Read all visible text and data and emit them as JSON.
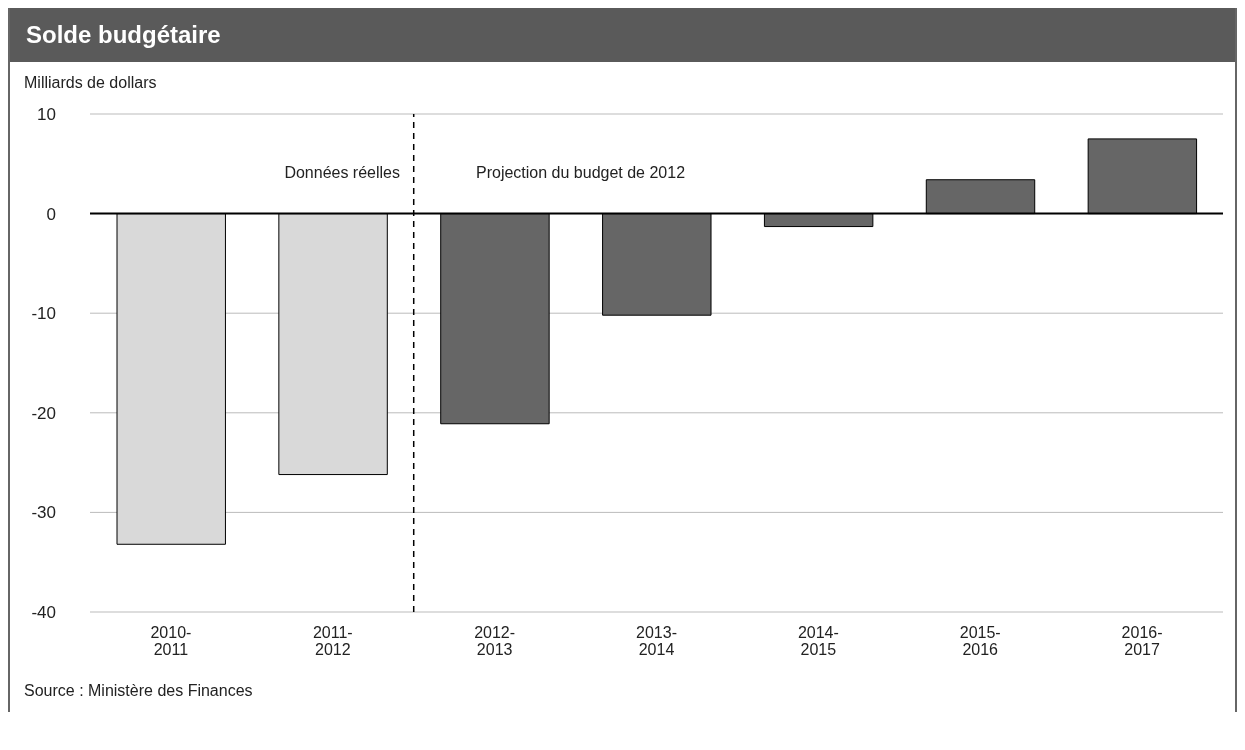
{
  "chart_data": {
    "type": "bar",
    "title": "Solde budgétaire",
    "ylabel": "Milliards de dollars",
    "categories": [
      "2010-\n2011",
      "2011-\n2012",
      "2012-\n2013",
      "2013-\n2014",
      "2014-\n2015",
      "2015-\n2016",
      "2016-\n2017"
    ],
    "values": [
      -33.2,
      -26.2,
      -21.1,
      -10.2,
      -1.3,
      3.4,
      7.5
    ],
    "colors": [
      "#d9d9d9",
      "#d9d9d9",
      "#666666",
      "#666666",
      "#666666",
      "#666666",
      "#666666"
    ],
    "ylim": [
      -40,
      10
    ],
    "yticks": [
      -40,
      -30,
      -20,
      -10,
      0,
      10
    ],
    "grid": "y",
    "ref_lines": [
      {
        "axis": "x",
        "value": "2012-\n2013",
        "color": "#000000",
        "line_style": "dashed"
      },
      {
        "axis": "y",
        "value": 0,
        "color": "#000000"
      }
    ],
    "annotations": [
      "Données réelles",
      "Projection du budget de 2012",
      "Source : Ministère des Finances"
    ]
  }
}
